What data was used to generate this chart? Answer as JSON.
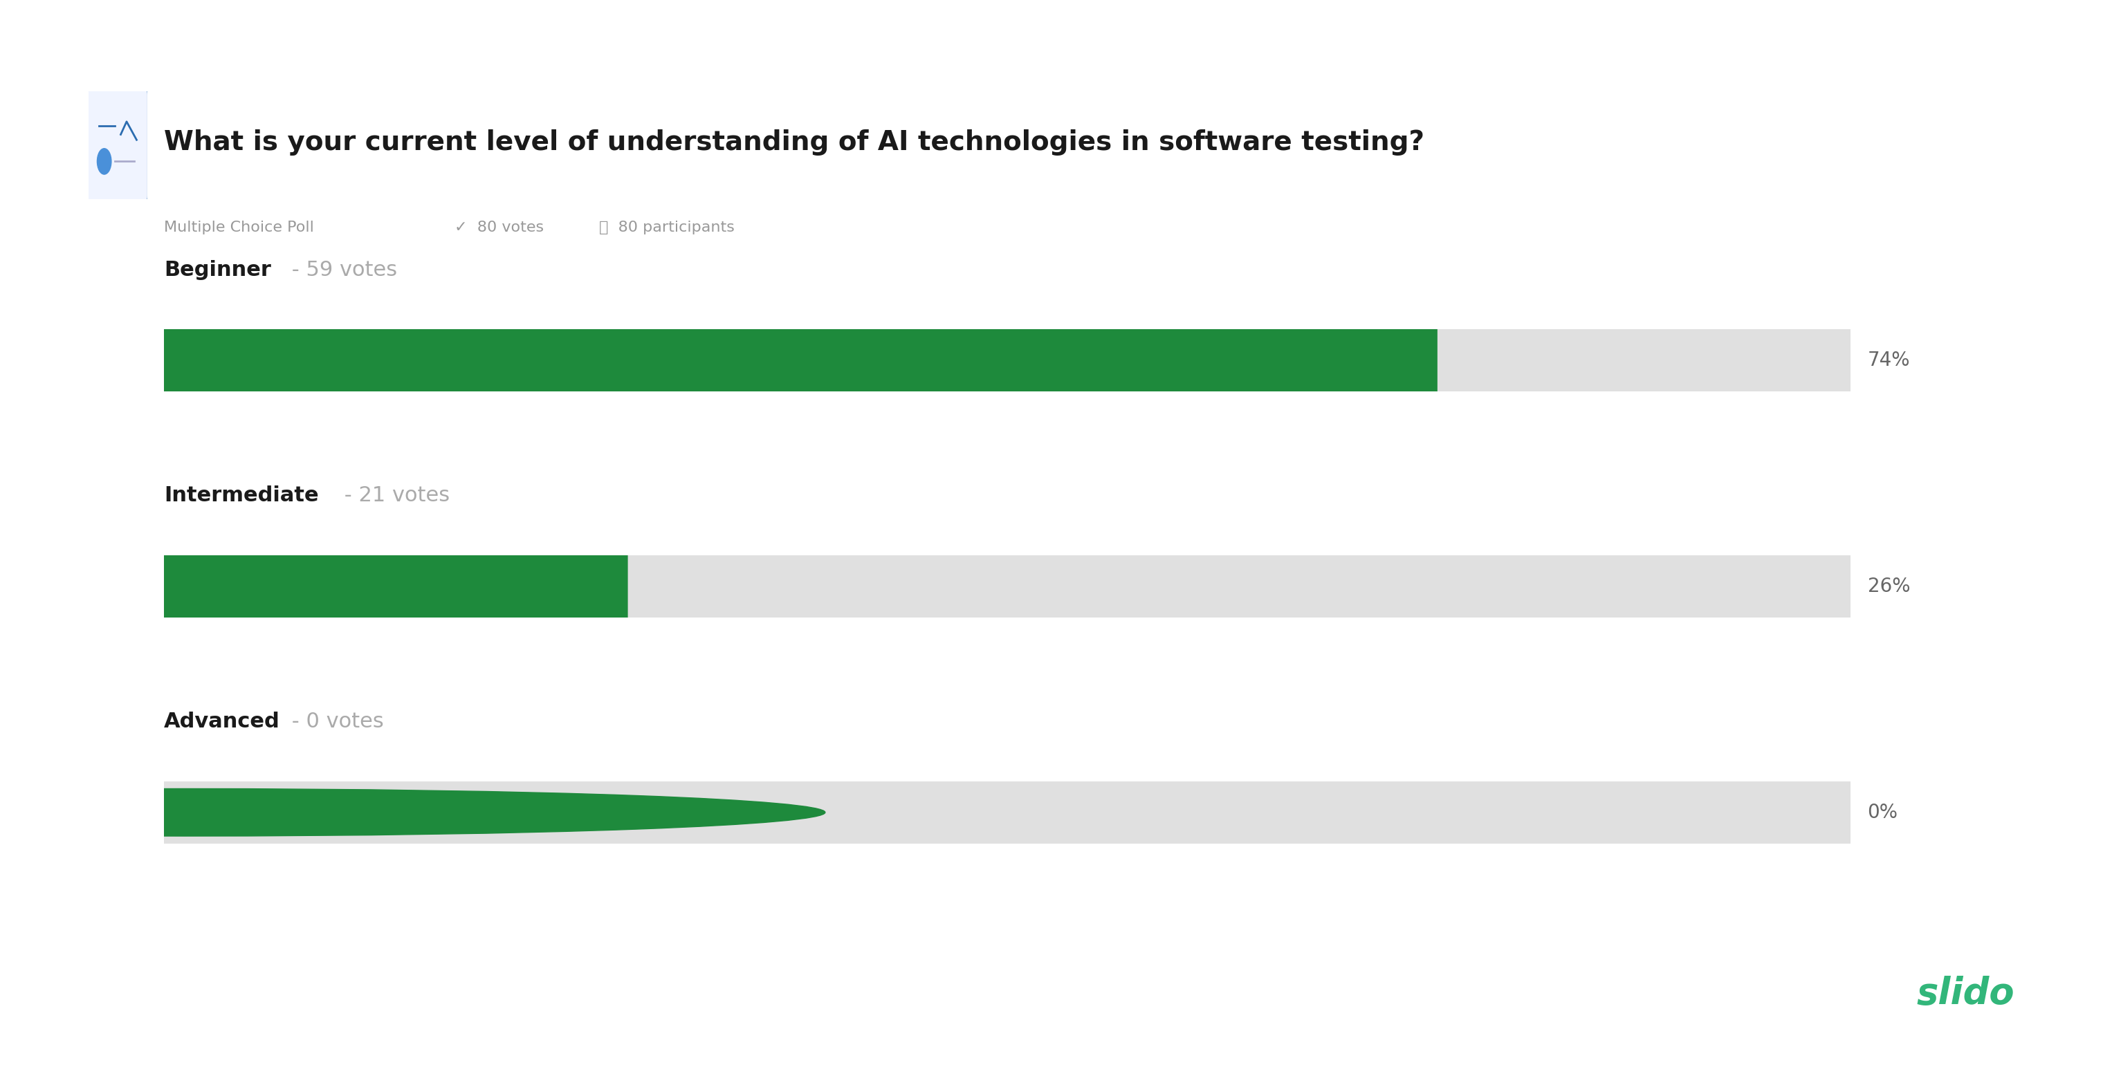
{
  "title": "What is your current level of understanding of AI technologies in software testing?",
  "subtitle_poll_type": "Multiple Choice Poll",
  "subtitle_votes": "80 votes",
  "subtitle_participants": "80 participants",
  "categories": [
    "Beginner",
    "Intermediate",
    "Advanced"
  ],
  "vote_counts": [
    59,
    21,
    0
  ],
  "percentages": [
    74,
    26,
    0
  ],
  "bar_color_filled": "#1e8a3c",
  "bar_color_bg": "#e0e0e0",
  "title_fontsize": 28,
  "subtitle_fontsize": 16,
  "label_fontsize": 22,
  "pct_fontsize": 20,
  "bg_color": "#ffffff",
  "title_color": "#1a1a1a",
  "label_bold_color": "#1a1a1a",
  "pct_color": "#666666",
  "slido_color": "#32b67a",
  "icon_box_color": "#2b6cb0",
  "subtitle_color": "#999999"
}
